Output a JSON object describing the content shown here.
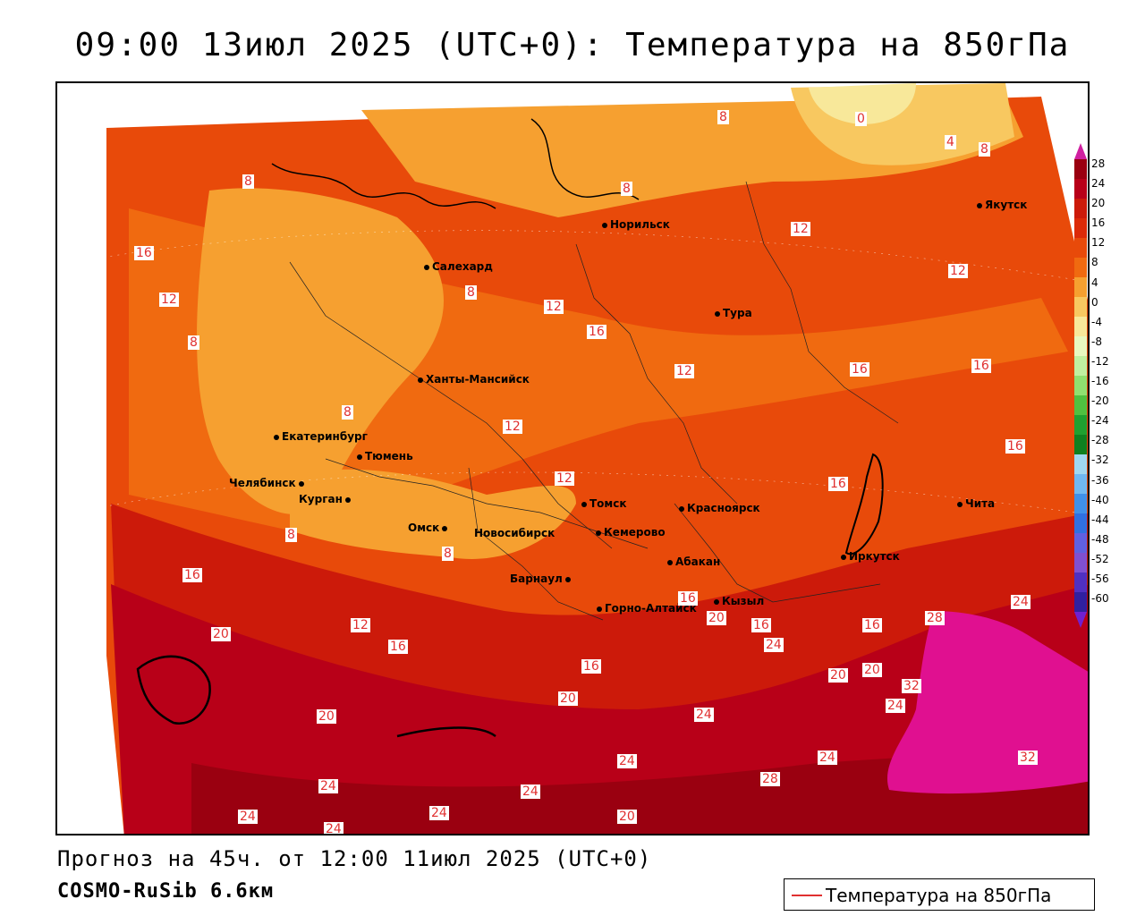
{
  "title": "09:00 13июл 2025 (UTC+0): Температура на 850гПа",
  "footer": {
    "forecast": "Прогноз на 45ч. от 12:00 11июл 2025 (UTC+0)",
    "model": "COSMO-RuSib 6.6км"
  },
  "legend": {
    "label": "Температура на 850гПа",
    "line_color": "#e03030"
  },
  "scale": {
    "labels": [
      "28",
      "24",
      "20",
      "16",
      "12",
      "8",
      "4",
      "0",
      "-4",
      "-8",
      "-12",
      "-16",
      "-20",
      "-24",
      "-28",
      "-32",
      "-36",
      "-40",
      "-44",
      "-48",
      "-52",
      "-56",
      "-60"
    ],
    "colors": [
      "#9a0010",
      "#b80018",
      "#cc1a0a",
      "#dc2a08",
      "#e84a0a",
      "#f06a10",
      "#f6a030",
      "#f8c860",
      "#f8e89a",
      "#e8f8c0",
      "#c0f0a0",
      "#90e070",
      "#50c040",
      "#20a030",
      "#108020",
      "#a0d8f0",
      "#70b8f0",
      "#4090e8",
      "#3070e0",
      "#6060e0",
      "#8050d0",
      "#5030c0",
      "#3020a0"
    ]
  },
  "cities": [
    {
      "name": "Салехард"
    },
    {
      "name": "Норильск"
    },
    {
      "name": "Якутск"
    },
    {
      "name": "Тура"
    },
    {
      "name": "Ханты-Мансийск"
    },
    {
      "name": "Екатеринбург"
    },
    {
      "name": "Тюмень"
    },
    {
      "name": "Челябинск"
    },
    {
      "name": "Курган"
    },
    {
      "name": "Омск"
    },
    {
      "name": "Новосибирск"
    },
    {
      "name": "Томск"
    },
    {
      "name": "Кемерово"
    },
    {
      "name": "Красноярск"
    },
    {
      "name": "Барнаул"
    },
    {
      "name": "Абакан"
    },
    {
      "name": "Горно-Алтайск"
    },
    {
      "name": "Кызыл"
    },
    {
      "name": "Иркутск"
    },
    {
      "name": "Чита"
    }
  ],
  "isolines": [
    "8",
    "0",
    "4",
    "8",
    "8",
    "8",
    "12",
    "16",
    "12",
    "12",
    "8",
    "12",
    "16",
    "16",
    "12",
    "16",
    "12",
    "8",
    "8",
    "16",
    "16",
    "12",
    "8",
    "8",
    "16",
    "16",
    "16",
    "20",
    "12",
    "16",
    "16",
    "20",
    "16",
    "16",
    "24",
    "20",
    "20",
    "28",
    "24",
    "32",
    "24",
    "20",
    "24",
    "24",
    "28",
    "24",
    "32",
    "24",
    "24",
    "24",
    "24",
    "20",
    "24",
    "20"
  ]
}
